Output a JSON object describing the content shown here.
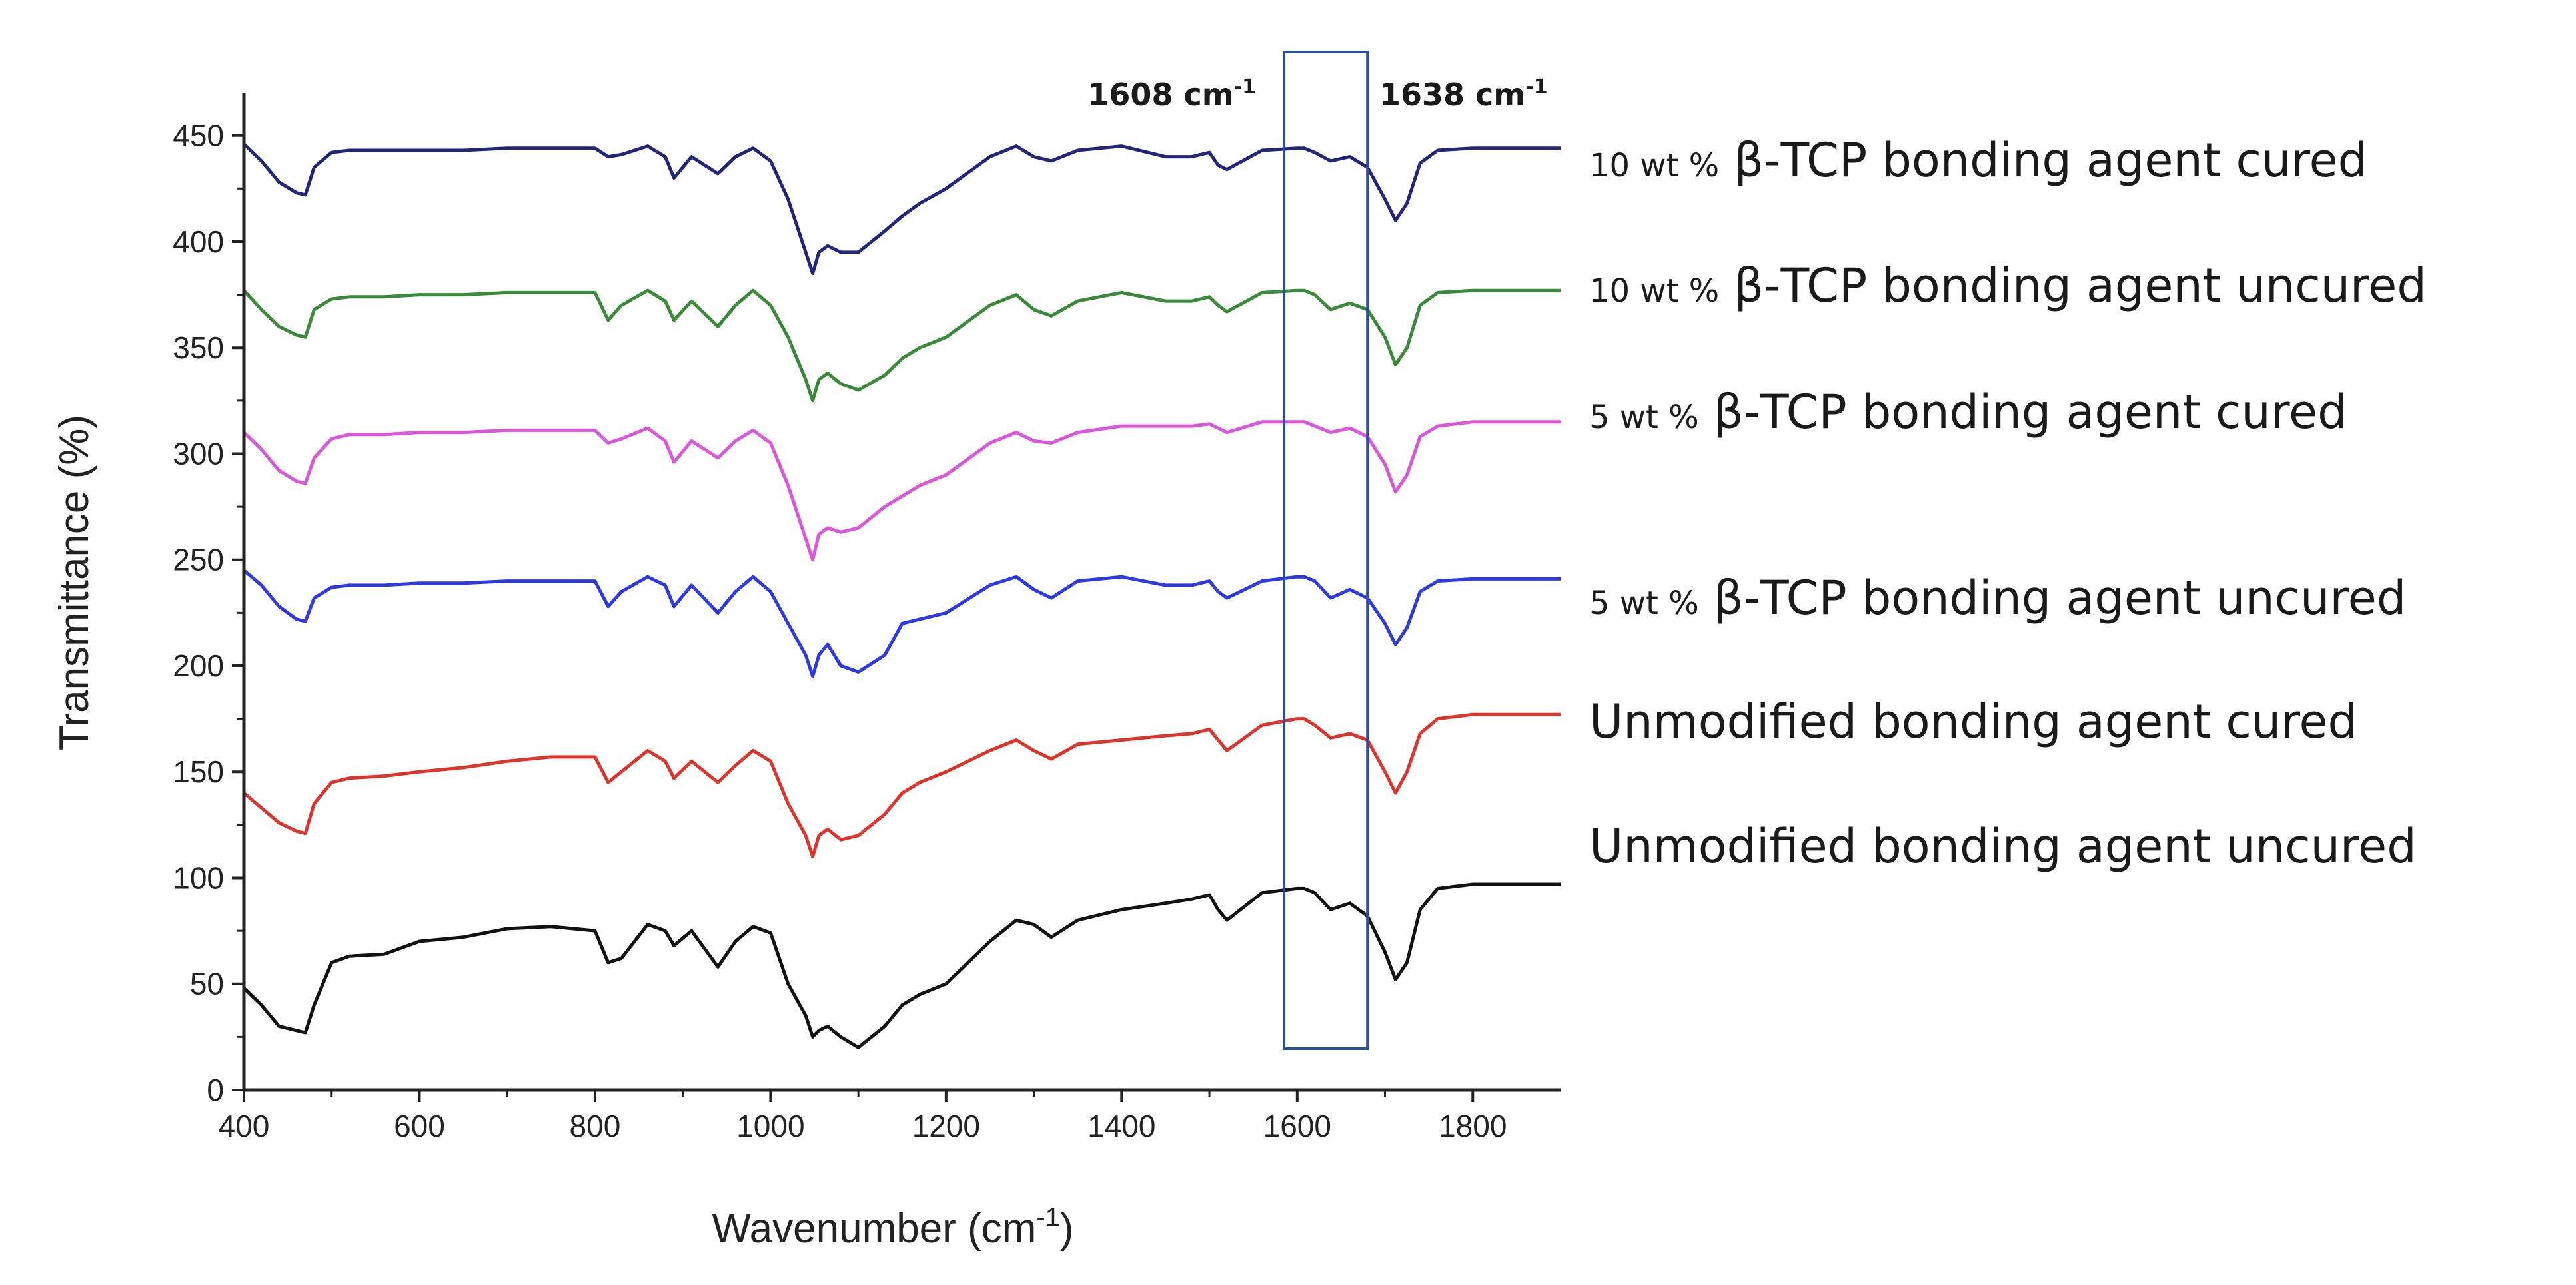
{
  "chart_data": {
    "type": "line",
    "title": "",
    "xlabel": "Wavenumber (cm",
    "xlabel_sup": "-1",
    "xlabel_end": ")",
    "ylabel": "Transmittance (%)",
    "xlim": [
      400,
      1900
    ],
    "ylim": [
      0,
      470
    ],
    "xticks": [
      400,
      600,
      800,
      1000,
      1200,
      1400,
      1600,
      1800
    ],
    "yticks": [
      0,
      50,
      100,
      150,
      200,
      250,
      300,
      350,
      400,
      450
    ],
    "grid": false,
    "highlight_region": {
      "x_start": 1585,
      "x_end": 1680
    },
    "annotations": [
      {
        "value": "1608 cm",
        "sup": "-1"
      },
      {
        "value": "1638 cm",
        "sup": "-1"
      }
    ],
    "x": [
      400,
      420,
      440,
      460,
      470,
      480,
      500,
      520,
      560,
      600,
      650,
      700,
      750,
      800,
      815,
      830,
      860,
      880,
      890,
      910,
      940,
      960,
      980,
      1000,
      1020,
      1040,
      1048,
      1055,
      1065,
      1080,
      1100,
      1130,
      1150,
      1170,
      1200,
      1250,
      1280,
      1300,
      1320,
      1350,
      1400,
      1450,
      1480,
      1500,
      1510,
      1520,
      1560,
      1600,
      1608,
      1620,
      1638,
      1660,
      1680,
      1700,
      1712,
      1725,
      1740,
      1760,
      1800,
      1850,
      1900
    ],
    "series": [
      {
        "name": "Unmodified bonding agent uncured",
        "color": "#111111",
        "values": [
          48,
          40,
          30,
          28,
          27,
          40,
          60,
          63,
          64,
          70,
          72,
          76,
          77,
          75,
          60,
          62,
          78,
          75,
          68,
          75,
          58,
          70,
          77,
          74,
          50,
          35,
          25,
          28,
          30,
          25,
          20,
          30,
          40,
          45,
          50,
          70,
          80,
          78,
          72,
          80,
          85,
          88,
          90,
          92,
          85,
          80,
          93,
          95,
          95,
          93,
          85,
          88,
          82,
          65,
          52,
          60,
          85,
          95,
          97,
          97,
          97
        ]
      },
      {
        "name": "Unmodified bonding agent cured",
        "color": "#d9372e",
        "values": [
          140,
          133,
          126,
          122,
          121,
          135,
          145,
          147,
          148,
          150,
          152,
          155,
          157,
          157,
          145,
          150,
          160,
          155,
          147,
          155,
          145,
          153,
          160,
          155,
          135,
          120,
          110,
          120,
          123,
          118,
          120,
          130,
          140,
          145,
          150,
          160,
          165,
          160,
          156,
          163,
          165,
          167,
          168,
          170,
          165,
          160,
          172,
          175,
          175,
          172,
          166,
          168,
          165,
          150,
          140,
          150,
          168,
          175,
          177,
          177,
          177
        ]
      },
      {
        "name": "5 wt % β-TCP bonding agent uncured",
        "color": "#2d3ae0",
        "values": [
          245,
          238,
          228,
          222,
          221,
          232,
          237,
          238,
          238,
          239,
          239,
          240,
          240,
          240,
          228,
          235,
          242,
          238,
          228,
          238,
          225,
          235,
          242,
          235,
          220,
          205,
          195,
          205,
          210,
          200,
          197,
          205,
          220,
          222,
          225,
          238,
          242,
          236,
          232,
          240,
          242,
          238,
          238,
          240,
          235,
          232,
          240,
          242,
          242,
          240,
          232,
          236,
          232,
          220,
          210,
          218,
          235,
          240,
          241,
          241,
          241
        ]
      },
      {
        "name": "5 wt % β-TCP bonding agent cured",
        "color": "#d957d9",
        "values": [
          310,
          302,
          292,
          287,
          286,
          298,
          307,
          309,
          309,
          310,
          310,
          311,
          311,
          311,
          305,
          307,
          312,
          306,
          296,
          306,
          298,
          306,
          311,
          305,
          285,
          260,
          250,
          262,
          265,
          263,
          265,
          275,
          280,
          285,
          290,
          305,
          310,
          306,
          305,
          310,
          313,
          313,
          313,
          314,
          312,
          310,
          315,
          315,
          315,
          313,
          310,
          312,
          308,
          295,
          282,
          290,
          308,
          313,
          315,
          315,
          315
        ]
      },
      {
        "name": "10 wt % β-TCP bonding agent uncured",
        "color": "#3a8a3a",
        "values": [
          377,
          368,
          360,
          356,
          355,
          368,
          373,
          374,
          374,
          375,
          375,
          376,
          376,
          376,
          363,
          370,
          377,
          372,
          363,
          372,
          360,
          370,
          377,
          370,
          355,
          335,
          325,
          335,
          338,
          333,
          330,
          337,
          345,
          350,
          355,
          370,
          375,
          368,
          365,
          372,
          376,
          372,
          372,
          374,
          370,
          367,
          376,
          377,
          377,
          375,
          368,
          371,
          368,
          355,
          342,
          350,
          370,
          376,
          377,
          377,
          377
        ]
      },
      {
        "name": "10 wt % β-TCP bonding agent cured",
        "color": "#22257a",
        "values": [
          446,
          438,
          428,
          423,
          422,
          435,
          442,
          443,
          443,
          443,
          443,
          444,
          444,
          444,
          440,
          441,
          445,
          440,
          430,
          440,
          432,
          440,
          444,
          438,
          420,
          395,
          385,
          395,
          398,
          395,
          395,
          405,
          412,
          418,
          425,
          440,
          445,
          440,
          438,
          443,
          445,
          440,
          440,
          442,
          436,
          434,
          443,
          444,
          444,
          442,
          438,
          440,
          435,
          420,
          410,
          418,
          437,
          443,
          444,
          444,
          444
        ]
      }
    ],
    "legend": [
      {
        "prefix": "10 wt ",
        "pct": "%",
        "suffix": " β-TCP bonding agent cured"
      },
      {
        "prefix": "10 wt ",
        "pct": "%",
        "suffix": " β-TCP bonding agent uncured"
      },
      {
        "prefix": "5 wt ",
        "pct": "%",
        "suffix": " β-TCP bonding agent cured"
      },
      {
        "prefix": "5 wt ",
        "pct": "%",
        "suffix": " β-TCP bonding agent uncured"
      },
      {
        "prefix": "",
        "pct": "",
        "suffix": "Unmodified bonding agent cured"
      },
      {
        "prefix": "",
        "pct": "",
        "suffix": "Unmodified bonding agent uncured"
      }
    ]
  }
}
